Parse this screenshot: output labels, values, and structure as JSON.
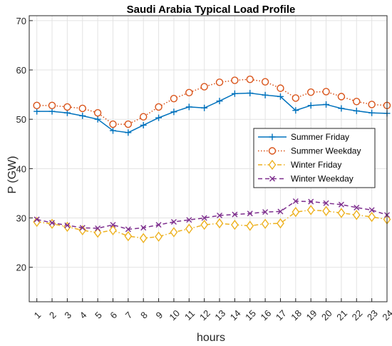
{
  "chart_data": {
    "type": "line",
    "title": "Saudi Arabia Typical Load Profile",
    "xlabel": "hours",
    "ylabel": "P (GW)",
    "x": [
      1,
      2,
      3,
      4,
      5,
      6,
      7,
      8,
      9,
      10,
      11,
      12,
      13,
      14,
      15,
      16,
      17,
      18,
      19,
      20,
      21,
      22,
      23,
      24
    ],
    "xlim": [
      0.5,
      24
    ],
    "ylim": [
      13,
      71
    ],
    "yticks": [
      20,
      30,
      40,
      50,
      60,
      70
    ],
    "grid": true,
    "legend_position": "right",
    "series": [
      {
        "name": "Summer Friday",
        "color": "#0072BD",
        "linestyle": "solid",
        "marker": "plus",
        "values": [
          51.6,
          51.6,
          51.3,
          50.7,
          50.0,
          47.7,
          47.3,
          48.8,
          50.3,
          51.5,
          52.5,
          52.3,
          53.7,
          55.2,
          55.3,
          54.9,
          54.6,
          51.8,
          52.8,
          53.0,
          52.2,
          51.7,
          51.3,
          51.2
        ]
      },
      {
        "name": "Summer Weekday",
        "color": "#D95319",
        "linestyle": "dotted",
        "marker": "circle",
        "values": [
          52.8,
          52.8,
          52.5,
          52.2,
          51.3,
          49.0,
          49.0,
          50.5,
          52.5,
          54.2,
          55.4,
          56.6,
          57.5,
          57.9,
          58.1,
          57.6,
          56.3,
          54.3,
          55.5,
          55.6,
          54.6,
          53.6,
          53.0,
          52.8
        ]
      },
      {
        "name": "Winter Friday",
        "color": "#EDB120",
        "linestyle": "dashdot",
        "marker": "diamond",
        "values": [
          29.2,
          28.8,
          28.2,
          27.5,
          27.0,
          27.5,
          26.3,
          25.9,
          26.2,
          27.1,
          27.8,
          28.6,
          28.9,
          28.6,
          28.4,
          28.8,
          28.9,
          31.2,
          31.6,
          31.4,
          31.0,
          30.6,
          30.2,
          29.7
        ]
      },
      {
        "name": "Winter Weekday",
        "color": "#7E2F8E",
        "linestyle": "dashed",
        "marker": "x",
        "values": [
          29.7,
          29.0,
          28.5,
          28.0,
          27.9,
          28.6,
          27.7,
          28.0,
          28.6,
          29.2,
          29.6,
          30.0,
          30.5,
          30.7,
          30.9,
          31.2,
          31.3,
          33.4,
          33.3,
          33.0,
          32.7,
          32.1,
          31.6,
          30.6
        ]
      }
    ]
  }
}
